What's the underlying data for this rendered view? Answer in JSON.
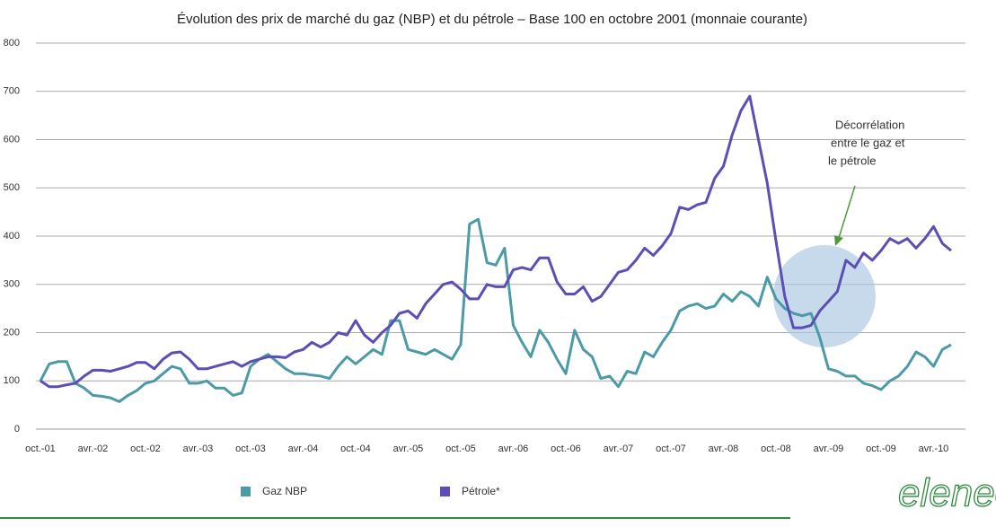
{
  "chart_data": {
    "type": "line",
    "title": "Évolution des prix de marché du gaz (NBP) et du pétrole – Base 100 en octobre 2001 (monnaie courante)",
    "categories": [
      "oct.-01",
      null,
      null,
      null,
      null,
      null,
      "avr.-02",
      null,
      null,
      null,
      null,
      null,
      "oct.-02",
      null,
      null,
      null,
      null,
      null,
      "avr.-03",
      null,
      null,
      null,
      null,
      null,
      "oct.-03",
      null,
      null,
      null,
      null,
      null,
      "avr.-04",
      null,
      null,
      null,
      null,
      null,
      "oct.-04",
      null,
      null,
      null,
      null,
      null,
      "avr.-05",
      null,
      null,
      null,
      null,
      null,
      "oct.-05",
      null,
      null,
      null,
      null,
      null,
      "avr.-06",
      null,
      null,
      null,
      null,
      null,
      "oct.-06",
      null,
      null,
      null,
      null,
      null,
      "avr.-07",
      null,
      null,
      null,
      null,
      null,
      "oct.-07",
      null,
      null,
      null,
      null,
      null,
      "avr.-08",
      null,
      null,
      null,
      null,
      null,
      "oct.-08",
      null,
      null,
      null,
      null,
      null,
      "avr.-09",
      null,
      null,
      null,
      null,
      null,
      "oct.-09",
      null,
      null,
      null,
      null,
      null,
      "avr.-10",
      null,
      null
    ],
    "series": [
      {
        "name": "Gaz NBP",
        "color": "#4b9aa6",
        "values": [
          100,
          135,
          140,
          140,
          95,
          85,
          70,
          68,
          65,
          57,
          70,
          80,
          95,
          100,
          115,
          130,
          125,
          95,
          95,
          100,
          85,
          85,
          70,
          75,
          130,
          145,
          155,
          140,
          125,
          115,
          115,
          112,
          110,
          105,
          130,
          150,
          135,
          150,
          165,
          155,
          225,
          225,
          165,
          160,
          155,
          165,
          155,
          145,
          175,
          425,
          435,
          345,
          340,
          375,
          215,
          180,
          150,
          205,
          180,
          145,
          115,
          205,
          165,
          150,
          105,
          110,
          88,
          120,
          115,
          160,
          150,
          180,
          205,
          245,
          255,
          260,
          250,
          255,
          280,
          265,
          285,
          275,
          255,
          315,
          270,
          250,
          240,
          235,
          240,
          190,
          125,
          120,
          110,
          110,
          95,
          90,
          82,
          100,
          110,
          130,
          160,
          150,
          130,
          165,
          175
        ]
      },
      {
        "name": "Pétrole*",
        "color": "#5b4fb3",
        "values": [
          100,
          88,
          88,
          92,
          95,
          110,
          122,
          122,
          120,
          125,
          130,
          138,
          138,
          125,
          145,
          158,
          160,
          145,
          125,
          125,
          130,
          135,
          140,
          130,
          140,
          145,
          150,
          150,
          148,
          160,
          165,
          180,
          170,
          180,
          200,
          195,
          225,
          195,
          180,
          200,
          215,
          240,
          245,
          230,
          260,
          280,
          300,
          305,
          290,
          270,
          270,
          300,
          295,
          295,
          330,
          335,
          330,
          355,
          355,
          305,
          280,
          280,
          295,
          265,
          275,
          300,
          325,
          330,
          350,
          375,
          360,
          380,
          405,
          460,
          455,
          465,
          470,
          520,
          545,
          610,
          660,
          690,
          600,
          510,
          390,
          275,
          210,
          210,
          215,
          245,
          265,
          285,
          350,
          335,
          365,
          350,
          370,
          395,
          385,
          395,
          375,
          395,
          420,
          385,
          370
        ]
      }
    ],
    "ylim": [
      0,
      800
    ],
    "yticks": [
      0,
      100,
      200,
      300,
      400,
      500,
      600,
      700,
      800
    ],
    "grid": true,
    "annotation": [
      "Décorrélation",
      "entre le gaz et",
      "le pétrole"
    ],
    "logo": "eleneo"
  }
}
